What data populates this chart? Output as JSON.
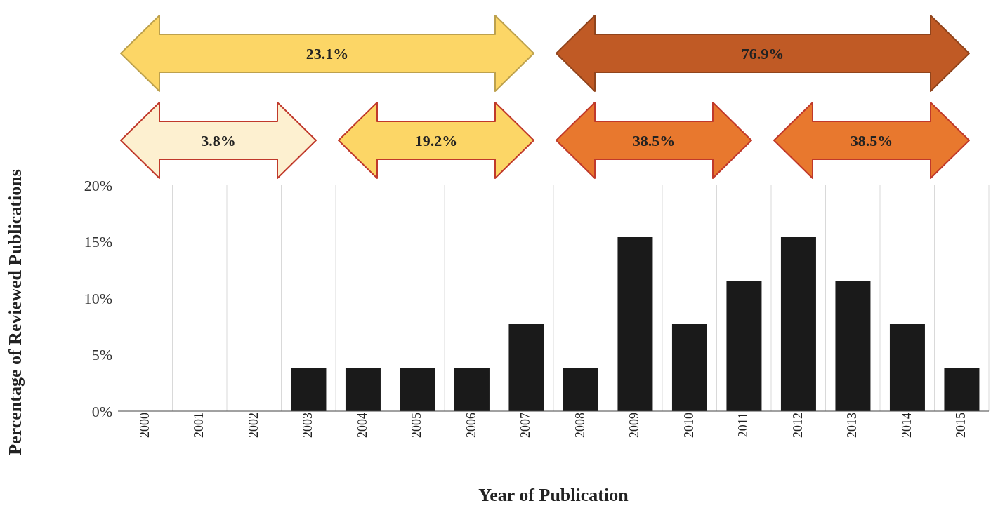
{
  "chart_data": {
    "type": "bar",
    "xlabel": "Year of Publication",
    "ylabel": "Percentage of Reviewed Publications",
    "categories": [
      "2000",
      "2001",
      "2002",
      "2003",
      "2004",
      "2005",
      "2006",
      "2007",
      "2008",
      "2009",
      "2010",
      "2011",
      "2012",
      "2013",
      "2014",
      "2015"
    ],
    "values": [
      0,
      0,
      0,
      3.8,
      3.8,
      3.8,
      3.8,
      7.7,
      3.8,
      15.4,
      7.7,
      11.5,
      15.4,
      11.5,
      7.7,
      3.8
    ],
    "color": "#1a1a1a",
    "ylim": [
      0,
      20
    ],
    "yticks": [
      {
        "value": 0,
        "label": "0%"
      },
      {
        "value": 5,
        "label": "5%"
      },
      {
        "value": 10,
        "label": "10%"
      },
      {
        "value": 15,
        "label": "15%"
      },
      {
        "value": 20,
        "label": "20%"
      }
    ],
    "grid": "x",
    "annotations": [
      "23.1%",
      "76.9%",
      "3.8%",
      "19.2%",
      "38.5%",
      "38.5%"
    ]
  }
}
